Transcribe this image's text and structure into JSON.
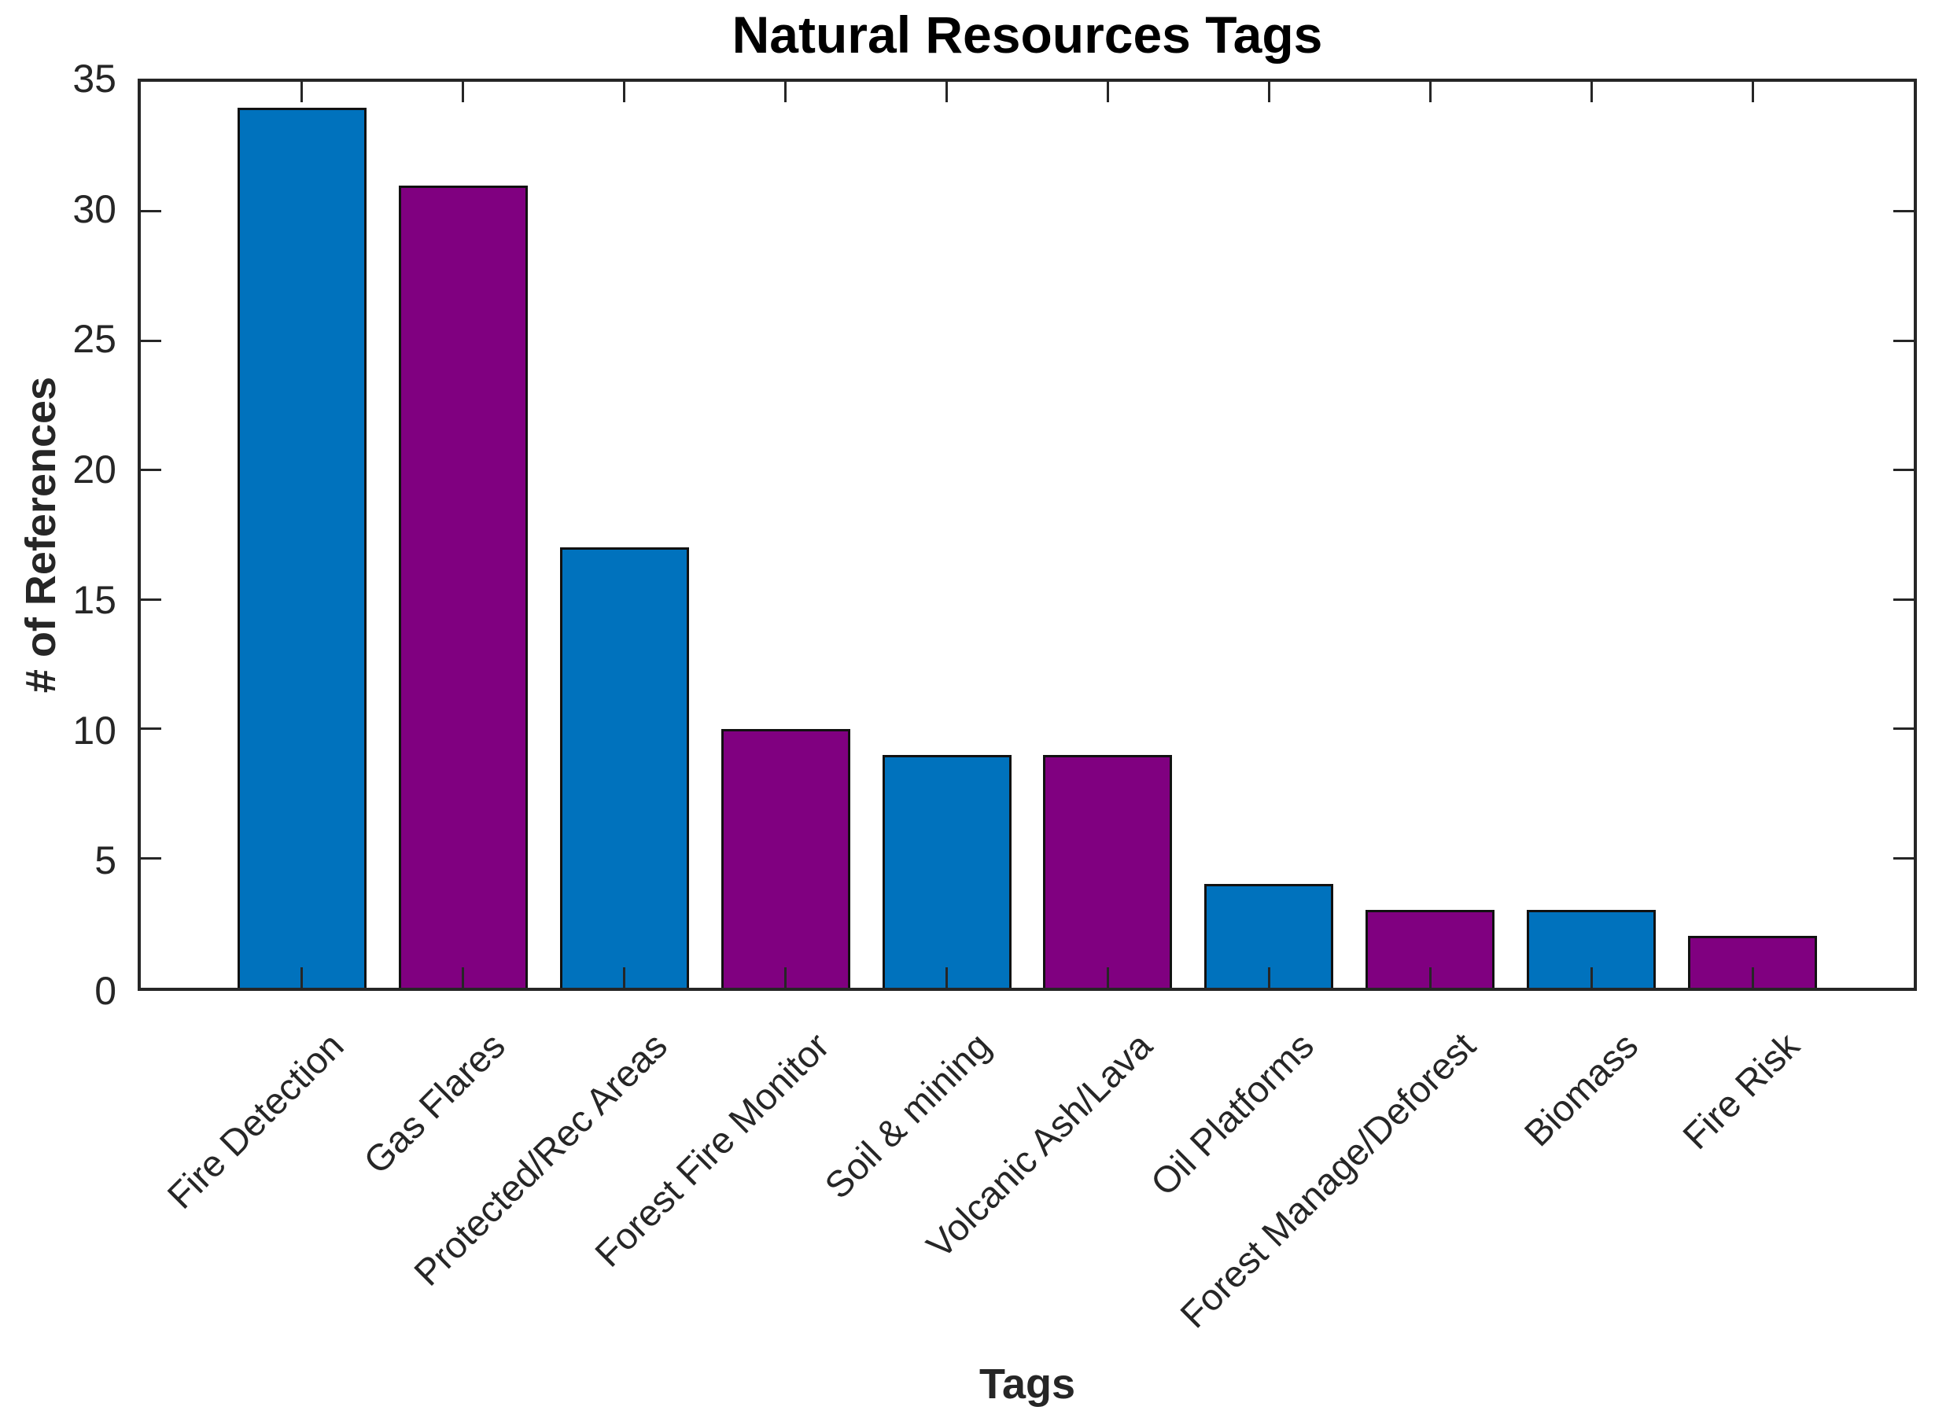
{
  "figure": {
    "background": "#ffffff",
    "axis_color": "#262626",
    "bar_edge_color": "#111111"
  },
  "chart_data": {
    "type": "bar",
    "title": "Natural Resources Tags",
    "xlabel": "Tags",
    "ylabel": "# of References",
    "categories": [
      "Fire Detection",
      "Gas Flares",
      "Protected/Rec Areas",
      "Forest Fire Monitor",
      "Soil & mining",
      "Volcanic Ash/Lava",
      "Oil Platforms",
      "Forest Manage/Deforest",
      "Biomass",
      "Fire Risk"
    ],
    "values": [
      34,
      31,
      17,
      10,
      9,
      9,
      4,
      3,
      3,
      2
    ],
    "bar_colors": [
      "#0072BD",
      "#800080",
      "#0072BD",
      "#800080",
      "#0072BD",
      "#800080",
      "#0072BD",
      "#800080",
      "#0072BD",
      "#800080"
    ],
    "ylim": [
      0,
      35
    ],
    "yticks": [
      0,
      5,
      10,
      15,
      20,
      25,
      30,
      35
    ],
    "xtick_rotation_deg": 45,
    "grid": false,
    "legend": null,
    "box": true,
    "tick_direction": "in"
  }
}
